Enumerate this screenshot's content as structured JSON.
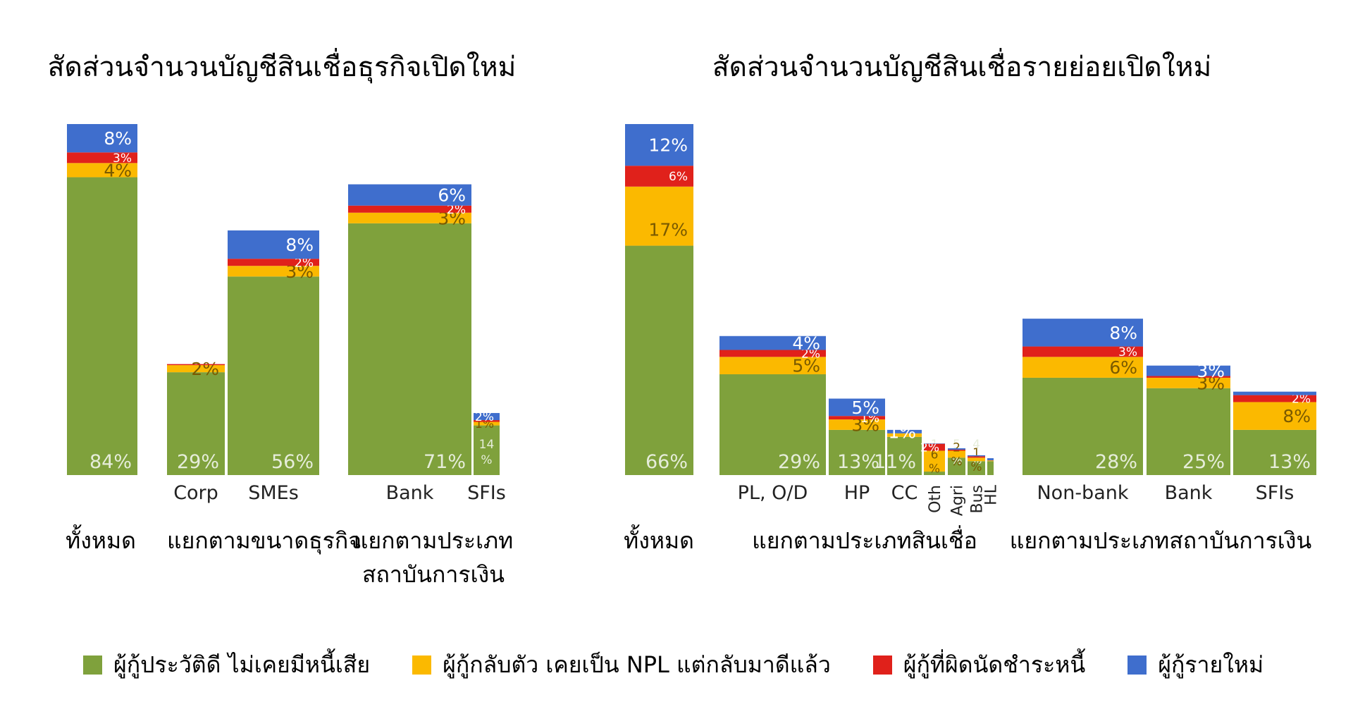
{
  "colors": {
    "green": "#7fa13c",
    "yellow": "#fbb900",
    "red": "#e0211b",
    "blue": "#3f6ecd"
  },
  "chart_data": [
    {
      "type": "bar",
      "stacked": true,
      "title": "สัดส่วนจำนวนบัญชีสินเชื่อธุรกิจเปิดใหม่",
      "segment_order": [
        "ผู้กู้ประวัติดี ไม่เคยมีหนี้เสีย",
        "ผู้กู้กลับตัว เคยเป็น NPL แต่กลับมาดีแล้ว",
        "ผู้กู้ที่ผิดนัดชำระหนี้",
        "ผู้กู้รายใหม่"
      ],
      "bars": [
        {
          "group": "ทั้งหมด",
          "label": "",
          "values": [
            84,
            4,
            3,
            8
          ],
          "value_labels": [
            "84%",
            "4%",
            "3%",
            "8%"
          ]
        },
        {
          "group": "แยกตามขนาดธุรกิจ",
          "label": "Corp",
          "values": [
            29,
            2,
            0.3,
            0
          ],
          "value_labels": [
            "29%",
            "2%",
            "",
            ""
          ]
        },
        {
          "group": "แยกตามขนาดธุรกิจ",
          "label": "SMEs",
          "values": [
            56,
            3,
            2,
            8
          ],
          "value_labels": [
            "56%",
            "3%",
            "2%",
            "8%"
          ]
        },
        {
          "group": "แยกตามประเภทสถาบันการเงิน",
          "label": "Bank",
          "values": [
            71,
            3,
            2,
            6
          ],
          "value_labels": [
            "71%",
            "3%",
            "2%",
            "6%"
          ]
        },
        {
          "group": "แยกตามประเภทสถาบันการเงิน",
          "label": "SFIs",
          "values": [
            14,
            1,
            0.5,
            2
          ],
          "value_labels": [
            "14%",
            "1%",
            "",
            "2%"
          ]
        }
      ],
      "group_labels": [
        "ทั้งหมด",
        "แยกตามขนาดธุรกิจ",
        "แยกตามประเภท\nสถาบันการเงิน"
      ]
    },
    {
      "type": "bar",
      "stacked": true,
      "title": "สัดส่วนจำนวนบัญชีสินเชื่อรายย่อยเปิดใหม่",
      "segment_order": [
        "ผู้กู้ประวัติดี ไม่เคยมีหนี้เสีย",
        "ผู้กู้กลับตัว เคยเป็น NPL แต่กลับมาดีแล้ว",
        "ผู้กู้ที่ผิดนัดชำระหนี้",
        "ผู้กู้รายใหม่"
      ],
      "bars": [
        {
          "group": "ทั้งหมด",
          "label": "",
          "values": [
            66,
            17,
            6,
            12
          ],
          "value_labels": [
            "66%",
            "17%",
            "6%",
            "12%"
          ]
        },
        {
          "group": "แยกตามประเภทสินเชื่อ",
          "label": "PL, O/D",
          "values": [
            29,
            5,
            2,
            4
          ],
          "value_labels": [
            "29%",
            "5%",
            "2%",
            "4%"
          ]
        },
        {
          "group": "แยกตามประเภทสินเชื่อ",
          "label": "HP",
          "values": [
            13,
            3,
            1,
            5
          ],
          "value_labels": [
            "13%",
            "3%",
            "1%",
            "5%"
          ]
        },
        {
          "group": "แยกตามประเภทสินเชื่อ",
          "label": "CC",
          "values": [
            11,
            1,
            0,
            1
          ],
          "value_labels": [
            "11%",
            "",
            "",
            "1%"
          ]
        },
        {
          "group": "แยกตามประเภทสินเชื่อ",
          "label": "Oth",
          "values": [
            1,
            6,
            2,
            0.1
          ],
          "value_labels": [
            "1%",
            "6%",
            "2%",
            ""
          ]
        },
        {
          "group": "แยกตามประเภทสินเชื่อ",
          "label": "Agri",
          "values": [
            5,
            2,
            0.3,
            0.4
          ],
          "value_labels": [
            "5%",
            "2%",
            "",
            ""
          ]
        },
        {
          "group": "แยกตามประเภทสินเชื่อ",
          "label": "Bus",
          "values": [
            4,
            1,
            0.4,
            0.3
          ],
          "value_labels": [
            "4%",
            "1%",
            "",
            ""
          ]
        },
        {
          "group": "แยกตามประเภทสินเชื่อ",
          "label": "HL",
          "values": [
            4,
            0.2,
            0.05,
            0.6
          ],
          "value_labels": [
            "",
            "",
            "",
            ""
          ]
        },
        {
          "group": "แยกตามประเภทสถาบันการเงิน",
          "label": "Non-bank",
          "values": [
            28,
            6,
            3,
            8
          ],
          "value_labels": [
            "28%",
            "6%",
            "3%",
            "8%"
          ]
        },
        {
          "group": "แยกตามประเภทสถาบันการเงิน",
          "label": "Bank",
          "values": [
            25,
            3,
            0.5,
            3
          ],
          "value_labels": [
            "25%",
            "3%",
            "",
            "3%"
          ]
        },
        {
          "group": "แยกตามประเภทสถาบันการเงิน",
          "label": "SFIs",
          "values": [
            13,
            8,
            2,
            1
          ],
          "value_labels": [
            "13%",
            "8%",
            "2%",
            ""
          ]
        }
      ],
      "group_labels": [
        "ทั้งหมด",
        "แยกตามประเภทสินเชื่อ",
        "แยกตามประเภทสถาบันการเงิน"
      ]
    }
  ],
  "legend": [
    {
      "label": "ผู้กู้ประวัติดี ไม่เคยมีหนี้เสีย",
      "color": "#7fa13c"
    },
    {
      "label": "ผู้กู้กลับตัว เคยเป็น NPL แต่กลับมาดีแล้ว",
      "color": "#fbb900"
    },
    {
      "label": "ผู้กู้ที่ผิดนัดชำระหนี้",
      "color": "#e0211b"
    },
    {
      "label": "ผู้กู้รายใหม่",
      "color": "#3f6ecd"
    }
  ]
}
